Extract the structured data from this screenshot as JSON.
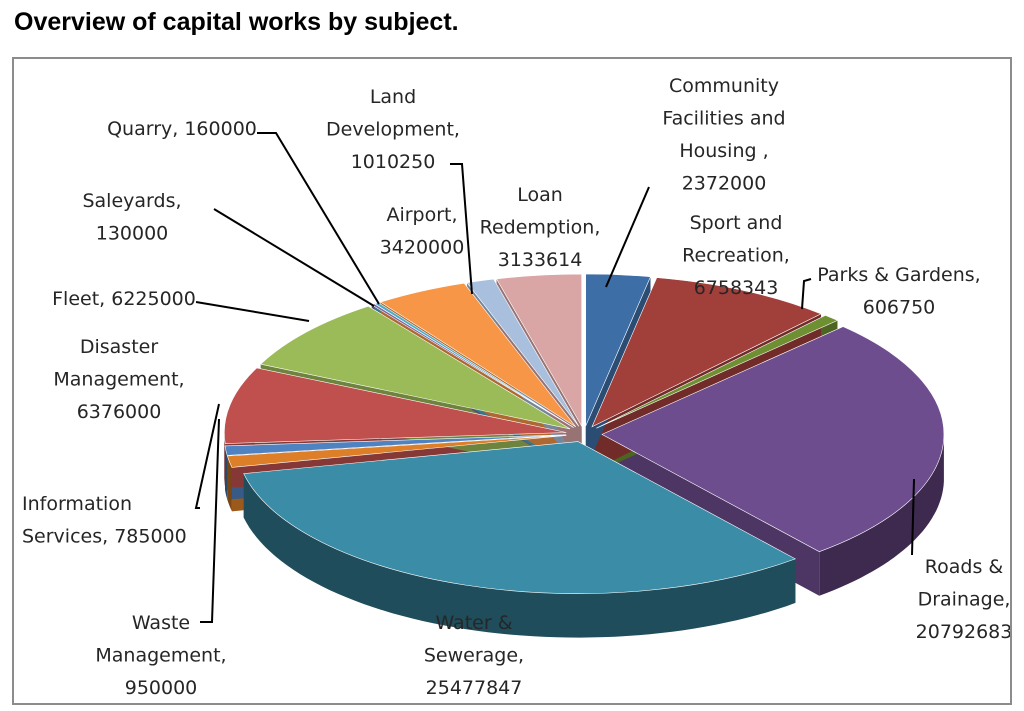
{
  "title": "Overview of capital works by subject.",
  "chart_data": {
    "type": "pie",
    "title": "Overview of capital works by subject.",
    "style": "3d-exploded",
    "legend": "none",
    "slices": [
      {
        "label": "Community Facilities and Housing ,",
        "value": 2372000,
        "value_text": "2372000",
        "color": "#3e6ea6"
      },
      {
        "label": "Sport and Recreation,",
        "value": 6758343,
        "value_text": "6758343",
        "color": "#a13f3b"
      },
      {
        "label": "Parks & Gardens,",
        "value": 606750,
        "value_text": "606750",
        "color": "#6e8f32"
      },
      {
        "label": "Roads & Drainage,",
        "value": 20792683,
        "value_text": "20792683",
        "color": "#6e4d8e"
      },
      {
        "label": "Water & Sewerage,",
        "value": 25477847,
        "value_text": "25477847",
        "color": "#3b8ca6"
      },
      {
        "label": "Waste Management,",
        "value": 950000,
        "value_text": "950000",
        "color": "#dd7f28"
      },
      {
        "label": "Information Services,",
        "value": 785000,
        "value_text": "785000",
        "color": "#4f82c0"
      },
      {
        "label": "Disaster Management,",
        "value": 6376000,
        "value_text": "6376000",
        "color": "#c0504d"
      },
      {
        "label": "Fleet,",
        "value": 6225000,
        "value_text": "6225000",
        "color": "#9bbb59"
      },
      {
        "label": "Saleyards,",
        "value": 130000,
        "value_text": "130000",
        "color": "#8064a2"
      },
      {
        "label": "Quarry,",
        "value": 160000,
        "value_text": "160000",
        "color": "#4bacc6"
      },
      {
        "label": "Airport,",
        "value": 3420000,
        "value_text": "3420000",
        "color": "#f79646"
      },
      {
        "label": "Land Development,",
        "value": 1010250,
        "value_text": "1010250",
        "color": "#a8bfde"
      },
      {
        "label": "Loan Redemption,",
        "value": 3133614,
        "value_text": "3133614",
        "color": "#d9a5a5"
      }
    ]
  }
}
